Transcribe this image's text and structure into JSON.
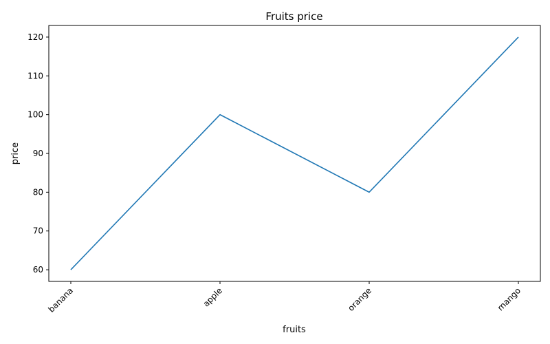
{
  "chart_data": {
    "type": "line",
    "title": "Fruits price",
    "xlabel": "fruits",
    "ylabel": "price",
    "categories": [
      "banana",
      "apple",
      "orange",
      "mango"
    ],
    "values": [
      60,
      100,
      80,
      120
    ],
    "ylim": [
      57,
      123
    ],
    "yticks": [
      "60",
      "70",
      "80",
      "90",
      "100",
      "110",
      "120"
    ],
    "grid": false,
    "line_color": "#1f77b4"
  }
}
